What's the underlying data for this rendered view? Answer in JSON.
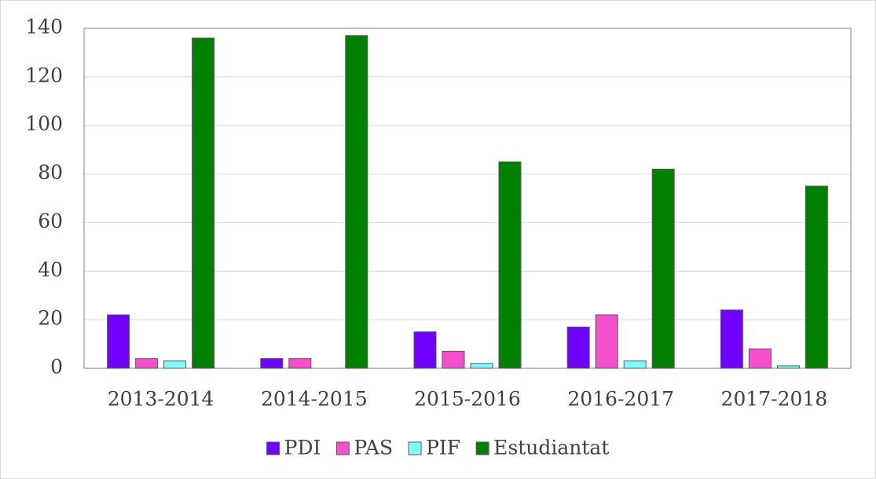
{
  "chart_data": {
    "type": "bar",
    "categories": [
      "2013-2014",
      "2014-2015",
      "2015-2016",
      "2016-2017",
      "2017-2018"
    ],
    "series": [
      {
        "name": "PDI",
        "color": "#7000ff",
        "values": [
          22,
          4,
          15,
          17,
          24
        ]
      },
      {
        "name": "PAS",
        "color": "#f64fd0",
        "values": [
          4,
          4,
          7,
          22,
          8
        ]
      },
      {
        "name": "PIF",
        "color": "#80ffff",
        "values": [
          3,
          0,
          2,
          3,
          1
        ]
      },
      {
        "name": "Estudiantat",
        "color": "#008000",
        "values": [
          136,
          137,
          85,
          82,
          75
        ]
      }
    ],
    "ylim": [
      0,
      140
    ],
    "yticks": [
      0,
      20,
      40,
      60,
      80,
      100,
      120,
      140
    ],
    "grid": true,
    "legend": "bottom"
  }
}
